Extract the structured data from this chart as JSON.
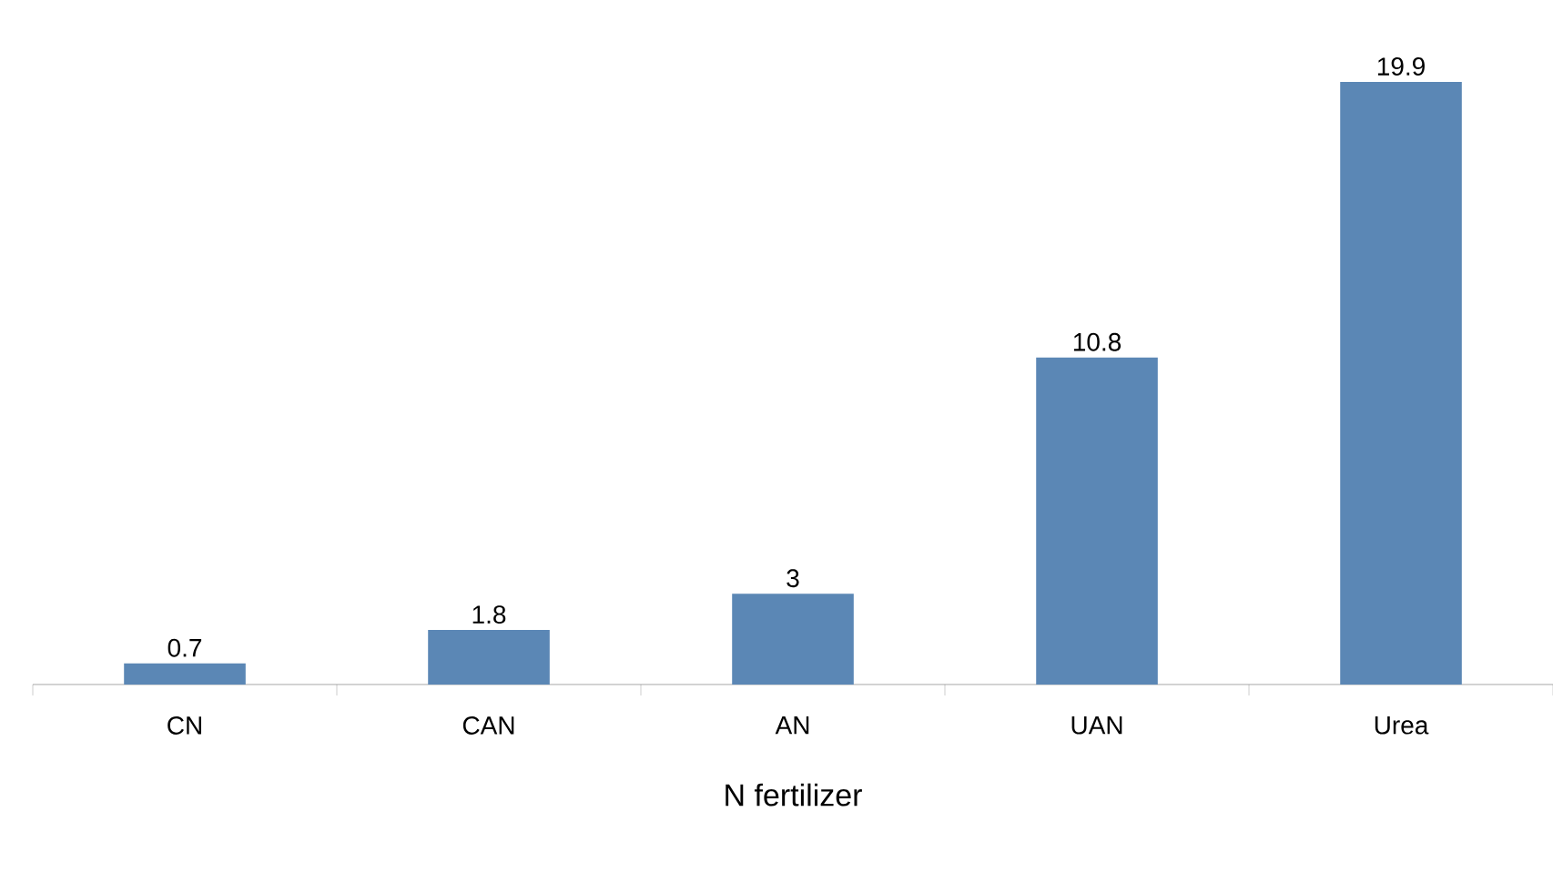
{
  "chart_data": {
    "type": "bar",
    "xlabel": "N fertilizer",
    "categories": [
      "CN",
      "CAN",
      "AN",
      "UAN",
      "Urea"
    ],
    "values": [
      0.7,
      1.8,
      3,
      10.8,
      19.9
    ],
    "color": "#5b87b5",
    "data_labels": true
  }
}
